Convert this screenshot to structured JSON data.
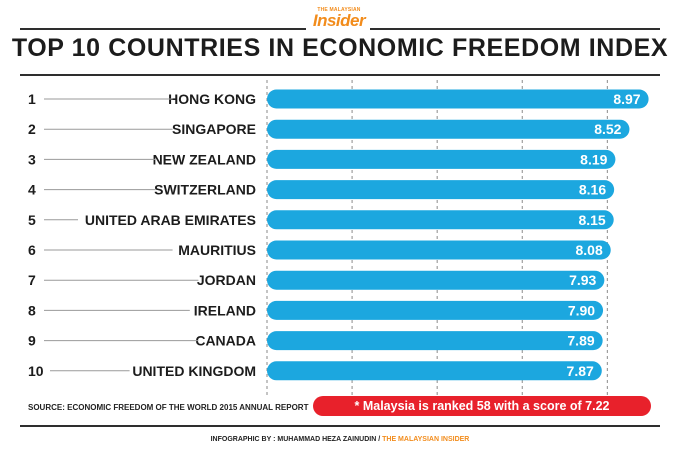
{
  "branding": {
    "logo_small": "THE MALAYSIAN",
    "logo_big": "Insider",
    "accent_color": "#f28c1c"
  },
  "chart_data": {
    "type": "bar",
    "orientation": "horizontal",
    "title": "TOP 10 COUNTRIES IN ECONOMIC FREEDOM INDEX",
    "ranks": [
      "1",
      "2",
      "3",
      "4",
      "5",
      "6",
      "7",
      "8",
      "9",
      "10"
    ],
    "categories": [
      "HONG KONG",
      "SINGAPORE",
      "NEW ZEALAND",
      "SWITZERLAND",
      "UNITED ARAB EMIRATES",
      "MAURITIUS",
      "JORDAN",
      "IRELAND",
      "CANADA",
      "UNITED KINGDOM"
    ],
    "values": [
      8.97,
      8.52,
      8.19,
      8.16,
      8.15,
      8.08,
      7.93,
      7.9,
      7.89,
      7.87
    ],
    "value_labels": [
      "8.97",
      "8.52",
      "8.19",
      "8.16",
      "8.15",
      "8.08",
      "7.93",
      "7.90",
      "7.89",
      "7.87"
    ],
    "xlim": [
      0,
      9.05
    ],
    "grid": true,
    "legend": "none",
    "bar_color": "#1ca7df",
    "grid_color": "#8a8a8a"
  },
  "source": "SOURCE: ECONOMIC FREEDOM OF THE WORLD 2015 ANNUAL REPORT",
  "note": {
    "text": "* Malaysia is ranked 58 with a score of 7.22",
    "color": "#e8212b"
  },
  "credit": {
    "prefix": "INFOGRAPHIC BY : MUHAMMAD HEZA ZAINUDIN / ",
    "outlet": "THE MALAYSIAN INSIDER"
  }
}
